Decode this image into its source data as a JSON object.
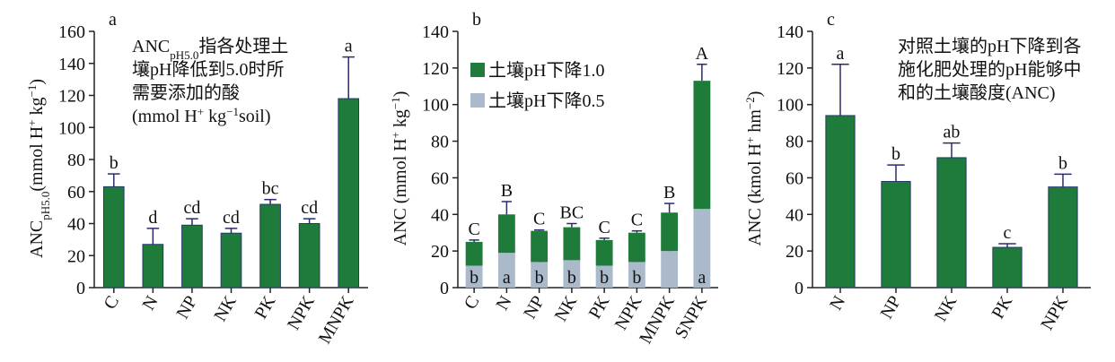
{
  "chart_data": [
    {
      "type": "bar",
      "panel": "a",
      "color": "#1e7b3a",
      "ylabel": [
        {
          "text": "ANC"
        },
        {
          "text": "pH5.0",
          "script": "sub"
        },
        {
          "text": "(mmol H"
        },
        {
          "text": "+",
          "script": "super"
        },
        {
          "text": " kg"
        },
        {
          "text": "−1",
          "script": "super"
        },
        {
          "text": ")"
        }
      ],
      "note": [
        [
          {
            "text": "ANC"
          },
          {
            "text": "pH5.0",
            "script": "sub"
          },
          {
            "text": "指各处理土"
          }
        ],
        [
          {
            "text": "壤pH降低到5.0时所"
          }
        ],
        [
          {
            "text": "需要添加的酸"
          }
        ],
        [
          {
            "text": "(mmol H"
          },
          {
            "text": "+",
            "script": "super"
          },
          {
            "text": " kg"
          },
          {
            "text": "−1",
            "script": "super"
          },
          {
            "text": "soil)"
          }
        ]
      ],
      "categories": [
        "C",
        "N",
        "NP",
        "NK",
        "PK",
        "NPK",
        "MNPK"
      ],
      "values": [
        63,
        27,
        39,
        34,
        52,
        40,
        118
      ],
      "errors": [
        8,
        10,
        4,
        3,
        3,
        3,
        26
      ],
      "letters": [
        "b",
        "d",
        "cd",
        "cd",
        "bc",
        "cd",
        "a"
      ],
      "ylim": [
        0,
        160
      ],
      "yticks": [
        0,
        20,
        40,
        60,
        80,
        100,
        120,
        140,
        160
      ]
    },
    {
      "type": "stacked",
      "panel": "b",
      "legend": "upper left",
      "ylabel": [
        {
          "text": "ANC (mmol H"
        },
        {
          "text": "+",
          "script": "super"
        },
        {
          "text": " kg"
        },
        {
          "text": "−1",
          "script": "super"
        },
        {
          "text": ")"
        }
      ],
      "categories": [
        "C",
        "N",
        "NP",
        "NK",
        "PK",
        "NPK",
        "MNPK",
        "SNPK"
      ],
      "series": [
        {
          "name": "土壤pH下降0.5",
          "color": "#abbacb",
          "values": [
            12,
            19,
            14,
            15,
            12,
            14,
            20,
            43
          ],
          "errors": [
            0.5,
            3,
            0.5,
            1,
            0.5,
            0.5,
            2,
            3
          ],
          "letters": [
            "b",
            "a",
            "b",
            "b",
            "b",
            "b",
            null,
            "a"
          ]
        },
        {
          "name": "土壤pH下降1.0",
          "color": "#1e7b3a",
          "values": [
            13,
            21,
            17,
            18,
            14,
            16,
            21,
            70
          ],
          "errors": [
            1,
            7,
            0.5,
            2,
            1,
            1,
            5,
            9
          ],
          "letters": [
            "C",
            "B",
            "C",
            "BC",
            "C",
            "C",
            "B",
            "A"
          ]
        }
      ],
      "ylim": [
        0,
        140
      ],
      "yticks": [
        0,
        20,
        40,
        60,
        80,
        100,
        120,
        140
      ]
    },
    {
      "type": "bar",
      "panel": "c",
      "color": "#1e7b3a",
      "ylabel": [
        {
          "text": "ANC (kmol H"
        },
        {
          "text": "+",
          "script": "super"
        },
        {
          "text": " hm"
        },
        {
          "text": "−2",
          "script": "super"
        },
        {
          "text": ")"
        }
      ],
      "note": [
        [
          {
            "text": "对照土壤的pH下降到各"
          }
        ],
        [
          {
            "text": "施化肥处理的pH能够中"
          }
        ],
        [
          {
            "text": "和的土壤酸度(ANC)"
          }
        ]
      ],
      "categories": [
        "N",
        "NP",
        "NK",
        "PK",
        "NPK"
      ],
      "values": [
        94,
        58,
        71,
        22,
        55
      ],
      "errors": [
        28,
        9,
        8,
        2,
        7
      ],
      "letters": [
        "a",
        "b",
        "ab",
        "c",
        "b"
      ],
      "ylim": [
        0,
        140
      ],
      "yticks": [
        0,
        20,
        40,
        60,
        80,
        100,
        120,
        140
      ]
    }
  ]
}
